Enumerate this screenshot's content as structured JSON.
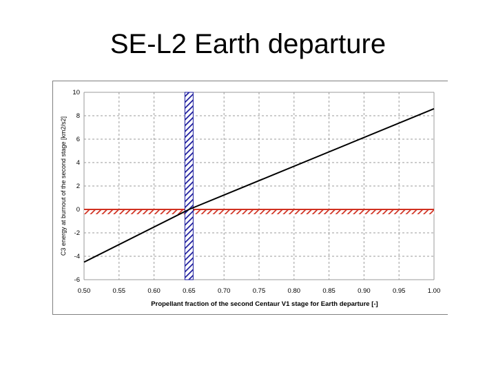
{
  "title": "SE-L2 Earth departure",
  "chart_data": {
    "type": "line",
    "xlabel": "Propellant fraction of the second Centaur V1 stage for Earth departure [-]",
    "ylabel": "C3 energy at burnout of the second stage [km2/s2]",
    "xlim": [
      0.5,
      1.0
    ],
    "ylim": [
      -6,
      10
    ],
    "x_ticks": [
      "0.50",
      "0.55",
      "0.60",
      "0.65",
      "0.70",
      "0.75",
      "0.80",
      "0.85",
      "0.90",
      "0.95",
      "1.00"
    ],
    "y_ticks": [
      "10",
      "8",
      "6",
      "4",
      "2",
      "0",
      "-2",
      "-4",
      "-6"
    ],
    "grid": true,
    "series": [
      {
        "x": [
          0.5,
          0.65,
          1.0
        ],
        "y": [
          -4.5,
          0,
          8.6
        ],
        "color": "#000000"
      }
    ],
    "reference_lines": [
      {
        "orientation": "horizontal",
        "value": 0,
        "color": "#d03020"
      },
      {
        "orientation": "vertical",
        "value": 0.65,
        "color": "#1a1a9c"
      }
    ]
  }
}
